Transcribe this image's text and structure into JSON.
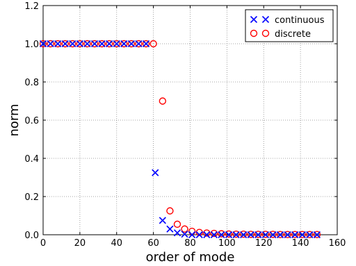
{
  "chart_data": {
    "type": "scatter",
    "title": "",
    "xlabel": "order of mode",
    "ylabel": "norm",
    "xlim": [
      0,
      160
    ],
    "ylim": [
      0,
      1.2
    ],
    "xticks": [
      0,
      20,
      40,
      60,
      80,
      100,
      120,
      140,
      160
    ],
    "yticks": [
      0.0,
      0.2,
      0.4,
      0.6,
      0.8,
      1.0,
      1.2
    ],
    "xtick_labels": [
      "0",
      "20",
      "40",
      "60",
      "80",
      "100",
      "120",
      "140",
      "160"
    ],
    "ytick_labels": [
      "0.0",
      "0.2",
      "0.4",
      "0.6",
      "0.8",
      "1.0",
      "1.2"
    ],
    "grid": true,
    "legend_position": "top-right",
    "series": [
      {
        "name": "continuous",
        "marker": "x",
        "color": "#0000ff",
        "points": [
          [
            0,
            1
          ],
          [
            4,
            1
          ],
          [
            8,
            1
          ],
          [
            12,
            1
          ],
          [
            16,
            1
          ],
          [
            20,
            1
          ],
          [
            24,
            1
          ],
          [
            28,
            1
          ],
          [
            32,
            1
          ],
          [
            36,
            1
          ],
          [
            40,
            1
          ],
          [
            44,
            1
          ],
          [
            48,
            1
          ],
          [
            52,
            1
          ],
          [
            56,
            1
          ],
          [
            61,
            0.325
          ],
          [
            65,
            0.075
          ],
          [
            69,
            0.03
          ],
          [
            73,
            0.01
          ],
          [
            77,
            0.003
          ],
          [
            81,
            0
          ],
          [
            85,
            0
          ],
          [
            89,
            0
          ],
          [
            93,
            0
          ],
          [
            97,
            0
          ],
          [
            101,
            0
          ],
          [
            105,
            0
          ],
          [
            109,
            0
          ],
          [
            113,
            0
          ],
          [
            117,
            0
          ],
          [
            121,
            0
          ],
          [
            125,
            0
          ],
          [
            129,
            0
          ],
          [
            133,
            0
          ],
          [
            137,
            0
          ],
          [
            141,
            0
          ],
          [
            145,
            0
          ],
          [
            149,
            0
          ]
        ]
      },
      {
        "name": "discrete",
        "marker": "o",
        "color": "#ff0000",
        "points": [
          [
            0,
            1
          ],
          [
            4,
            1
          ],
          [
            8,
            1
          ],
          [
            12,
            1
          ],
          [
            16,
            1
          ],
          [
            20,
            1
          ],
          [
            24,
            1
          ],
          [
            28,
            1
          ],
          [
            32,
            1
          ],
          [
            36,
            1
          ],
          [
            40,
            1
          ],
          [
            44,
            1
          ],
          [
            48,
            1
          ],
          [
            52,
            1
          ],
          [
            56,
            1
          ],
          [
            60,
            1
          ],
          [
            65,
            0.7
          ],
          [
            69,
            0.125
          ],
          [
            73,
            0.055
          ],
          [
            77,
            0.03
          ],
          [
            81,
            0.018
          ],
          [
            85,
            0.012
          ],
          [
            89,
            0.009
          ],
          [
            93,
            0.007
          ],
          [
            97,
            0.005
          ],
          [
            101,
            0.004
          ],
          [
            105,
            0.003
          ],
          [
            109,
            0.003
          ],
          [
            113,
            0.002
          ],
          [
            117,
            0.002
          ],
          [
            121,
            0.002
          ],
          [
            125,
            0.002
          ],
          [
            129,
            0.001
          ],
          [
            133,
            0.001
          ],
          [
            137,
            0.001
          ],
          [
            141,
            0.001
          ],
          [
            145,
            0.001
          ],
          [
            149,
            0.001
          ]
        ]
      }
    ]
  }
}
